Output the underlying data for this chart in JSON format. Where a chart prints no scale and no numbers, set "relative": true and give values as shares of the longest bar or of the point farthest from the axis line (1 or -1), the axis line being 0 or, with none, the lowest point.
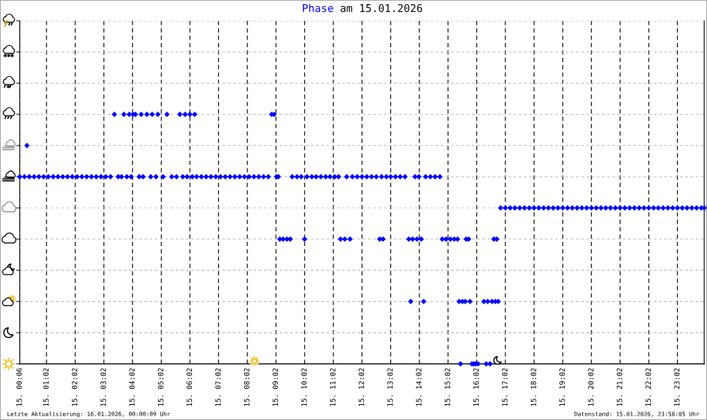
{
  "chart_data": {
    "type": "scatter",
    "title": "am 15.01.2026",
    "relative": true,
    "marker": "diamond",
    "grid": true,
    "tick_labels": "x",
    "xlim": [
      "2026-01-15T00:06",
      "2026-01-15T23:58"
    ],
    "xticks": [
      {
        "value": "2026-01-15T00:06",
        "label": "15. 00:06"
      },
      {
        "value": "2026-01-15T01:02",
        "label": "15. 01:02"
      },
      {
        "value": "2026-01-15T02:02",
        "label": "15. 02:02"
      },
      {
        "value": "2026-01-15T03:02",
        "label": "15. 03:02"
      },
      {
        "value": "2026-01-15T04:02",
        "label": "15. 04:02"
      },
      {
        "value": "2026-01-15T05:02",
        "label": "15. 05:02"
      },
      {
        "value": "2026-01-15T06:02",
        "label": "15. 06:02"
      },
      {
        "value": "2026-01-15T07:02",
        "label": "15. 07:02"
      },
      {
        "value": "2026-01-15T08:02",
        "label": "15. 08:02"
      },
      {
        "value": "2026-01-15T09:02",
        "label": "15. 09:02"
      },
      {
        "value": "2026-01-15T10:02",
        "label": "15. 10:02"
      },
      {
        "value": "2026-01-15T11:02",
        "label": "15. 11:02"
      },
      {
        "value": "2026-01-15T12:02",
        "label": "15. 12:02"
      },
      {
        "value": "2026-01-15T13:02",
        "label": "15. 13:02"
      },
      {
        "value": "2026-01-15T14:02",
        "label": "15. 14:02"
      },
      {
        "value": "2026-01-15T15:02",
        "label": "15. 15:02"
      },
      {
        "value": "2026-01-15T16:02",
        "label": "15. 16:02"
      },
      {
        "value": "2026-01-15T17:02",
        "label": "15. 17:02"
      },
      {
        "value": "2026-01-15T18:02",
        "label": "15. 18:02"
      },
      {
        "value": "2026-01-15T19:02",
        "label": "15. 19:02"
      },
      {
        "value": "2026-01-15T20:02",
        "label": "15. 20:02"
      },
      {
        "value": "2026-01-15T21:02",
        "label": "15. 21:02"
      },
      {
        "value": "2026-01-15T22:02",
        "label": "15. 22:02"
      },
      {
        "value": "2026-01-15T23:02",
        "label": "15. 23:02"
      }
    ],
    "x": [
      "2026-01-15T00:06",
      "2026-01-15T00:16",
      "2026-01-15T00:21",
      "2026-01-15T00:26",
      "2026-01-15T00:36",
      "2026-01-15T00:46",
      "2026-01-15T00:56",
      "2026-01-15T01:06",
      "2026-01-15T01:16",
      "2026-01-15T01:26",
      "2026-01-15T01:36",
      "2026-01-15T01:46",
      "2026-01-15T01:56",
      "2026-01-15T02:06",
      "2026-01-15T02:16",
      "2026-01-15T02:26",
      "2026-01-15T02:36",
      "2026-01-15T02:46",
      "2026-01-15T02:56",
      "2026-01-15T03:06",
      "2026-01-15T03:16",
      "2026-01-15T03:24",
      "2026-01-15T03:32",
      "2026-01-15T03:39",
      "2026-01-15T03:44",
      "2026-01-15T03:50",
      "2026-01-15T03:55",
      "2026-01-15T03:59",
      "2026-01-15T04:03",
      "2026-01-15T04:08",
      "2026-01-15T04:16",
      "2026-01-15T04:20",
      "2026-01-15T04:24",
      "2026-01-15T04:32",
      "2026-01-15T04:40",
      "2026-01-15T04:43",
      "2026-01-15T04:51",
      "2026-01-15T04:55",
      "2026-01-15T05:06",
      "2026-01-15T05:14",
      "2026-01-15T05:24",
      "2026-01-15T05:34",
      "2026-01-15T05:41",
      "2026-01-15T05:47",
      "2026-01-15T05:52",
      "2026-01-15T05:56",
      "2026-01-15T06:02",
      "2026-01-15T06:07",
      "2026-01-15T06:12",
      "2026-01-15T06:16",
      "2026-01-15T06:26",
      "2026-01-15T06:36",
      "2026-01-15T06:46",
      "2026-01-15T06:56",
      "2026-01-15T07:06",
      "2026-01-15T07:16",
      "2026-01-15T07:26",
      "2026-01-15T07:36",
      "2026-01-15T07:46",
      "2026-01-15T07:56",
      "2026-01-15T08:06",
      "2026-01-15T08:16",
      "2026-01-15T08:26",
      "2026-01-15T08:36",
      "2026-01-15T08:46",
      "2026-01-15T08:53",
      "2026-01-15T08:58",
      "2026-01-15T09:03",
      "2026-01-15T09:07",
      "2026-01-15T09:10",
      "2026-01-15T09:17",
      "2026-01-15T09:25",
      "2026-01-15T09:32",
      "2026-01-15T09:36",
      "2026-01-15T09:46",
      "2026-01-15T09:55",
      "2026-01-15T10:02",
      "2026-01-15T10:07",
      "2026-01-15T10:17",
      "2026-01-15T10:26",
      "2026-01-15T10:36",
      "2026-01-15T10:46",
      "2026-01-15T10:55",
      "2026-01-15T11:05",
      "2026-01-15T11:13",
      "2026-01-15T11:17",
      "2026-01-15T11:26",
      "2026-01-15T11:30",
      "2026-01-15T11:37",
      "2026-01-15T11:42",
      "2026-01-15T11:52",
      "2026-01-15T12:02",
      "2026-01-15T12:12",
      "2026-01-15T12:22",
      "2026-01-15T12:32",
      "2026-01-15T12:39",
      "2026-01-15T12:43",
      "2026-01-15T12:46",
      "2026-01-15T12:53",
      "2026-01-15T13:02",
      "2026-01-15T13:12",
      "2026-01-15T13:22",
      "2026-01-15T13:32",
      "2026-01-15T13:40",
      "2026-01-15T13:44",
      "2026-01-15T13:48",
      "2026-01-15T13:53",
      "2026-01-15T13:57",
      "2026-01-15T14:01",
      "2026-01-15T14:06",
      "2026-01-15T14:11",
      "2026-01-15T14:15",
      "2026-01-15T14:25",
      "2026-01-15T14:35",
      "2026-01-15T14:45",
      "2026-01-15T14:50",
      "2026-01-15T14:58",
      "2026-01-15T15:07",
      "2026-01-15T15:15",
      "2026-01-15T15:22",
      "2026-01-15T15:25",
      "2026-01-15T15:28",
      "2026-01-15T15:32",
      "2026-01-15T15:38",
      "2026-01-15T15:40",
      "2026-01-15T15:45",
      "2026-01-15T15:48",
      "2026-01-15T15:52",
      "2026-01-15T15:56",
      "2026-01-15T16:00",
      "2026-01-15T16:05",
      "2026-01-15T16:17",
      "2026-01-15T16:22",
      "2026-01-15T16:25",
      "2026-01-15T16:30",
      "2026-01-15T16:34",
      "2026-01-15T16:38",
      "2026-01-15T16:41",
      "2026-01-15T16:44",
      "2026-01-15T16:47",
      "2026-01-15T16:52",
      "2026-01-15T17:02",
      "2026-01-15T17:12",
      "2026-01-15T17:22",
      "2026-01-15T17:32",
      "2026-01-15T17:42",
      "2026-01-15T17:52",
      "2026-01-15T18:02",
      "2026-01-15T18:12",
      "2026-01-15T18:22",
      "2026-01-15T18:32",
      "2026-01-15T18:42",
      "2026-01-15T18:52",
      "2026-01-15T19:02",
      "2026-01-15T19:12",
      "2026-01-15T19:22",
      "2026-01-15T19:32",
      "2026-01-15T19:42",
      "2026-01-15T19:52",
      "2026-01-15T20:02",
      "2026-01-15T20:12",
      "2026-01-15T20:22",
      "2026-01-15T20:32",
      "2026-01-15T20:42",
      "2026-01-15T20:52",
      "2026-01-15T21:02",
      "2026-01-15T21:12",
      "2026-01-15T21:22",
      "2026-01-15T21:32",
      "2026-01-15T21:42",
      "2026-01-15T21:52",
      "2026-01-15T22:02",
      "2026-01-15T22:12",
      "2026-01-15T22:22",
      "2026-01-15T22:32",
      "2026-01-15T22:42",
      "2026-01-15T22:52",
      "2026-01-15T23:02",
      "2026-01-15T23:12",
      "2026-01-15T23:22",
      "2026-01-15T23:32",
      "2026-01-15T23:42",
      "2026-01-15T23:52",
      "2026-01-15T23:58"
    ],
    "series": [
      {
        "name": "Phase",
        "color": "#0000ff",
        "values": [
          0.75,
          0.75,
          0.875,
          0.75,
          0.75,
          0.75,
          0.75,
          0.75,
          0.75,
          0.75,
          0.75,
          0.75,
          0.75,
          0.75,
          0.75,
          0.75,
          0.75,
          0.75,
          0.75,
          0.75,
          0.75,
          1,
          0.75,
          0.75,
          1,
          0.75,
          1,
          0.75,
          1,
          1,
          0.75,
          1,
          0.75,
          1,
          0.75,
          1,
          0.75,
          1,
          0.75,
          1,
          0.75,
          0.75,
          1,
          0.75,
          1,
          0.75,
          1,
          0.75,
          1,
          0.75,
          0.75,
          0.75,
          0.75,
          0.75,
          0.75,
          0.75,
          0.75,
          0.75,
          0.75,
          0.75,
          0.75,
          0.75,
          0.75,
          0.75,
          0.75,
          1,
          1,
          0.75,
          0.75,
          0.5,
          0.5,
          0.5,
          0.5,
          0.75,
          0.75,
          0.75,
          0.5,
          0.75,
          0.75,
          0.75,
          0.75,
          0.75,
          0.75,
          0.75,
          0.75,
          0.5,
          0.5,
          0.75,
          0.5,
          0.75,
          0.75,
          0.75,
          0.75,
          0.75,
          0.75,
          0.5,
          0.75,
          0.5,
          0.75,
          0.75,
          0.75,
          0.75,
          0.75,
          0.5,
          0.25,
          0.5,
          0.75,
          0.5,
          0.75,
          0.5,
          0.25,
          0.75,
          0.75,
          0.75,
          0.75,
          0.5,
          0.5,
          0.5,
          0.5,
          0.5,
          0.25,
          0,
          0.25,
          0.25,
          0.5,
          0.5,
          0.25,
          0,
          0,
          0,
          0,
          0.25,
          0,
          0.25,
          0,
          0.25,
          0.5,
          0.25,
          0.5,
          0.25,
          0.625,
          0.625,
          0.625,
          0.625,
          0.625,
          0.625,
          0.625,
          0.625,
          0.625,
          0.625,
          0.625,
          0.625,
          0.625,
          0.625,
          0.625,
          0.625,
          0.625,
          0.625,
          0.625,
          0.625,
          0.625,
          0.625,
          0.625,
          0.625,
          0.625,
          0.625,
          0.625,
          0.625,
          0.625,
          0.625,
          0.625,
          0.625,
          0.625,
          0.625,
          0.625,
          0.625,
          0.625,
          0.625,
          0.625,
          0.625,
          0.625,
          0.625,
          0.625,
          0.625
        ]
      }
    ],
    "annotations": [
      "Letzte Aktualisierung: 16.01.2026, 00:00:09 Uhr",
      "Datenstand: 15.01.2026, 23:58:05 Uhr"
    ]
  }
}
